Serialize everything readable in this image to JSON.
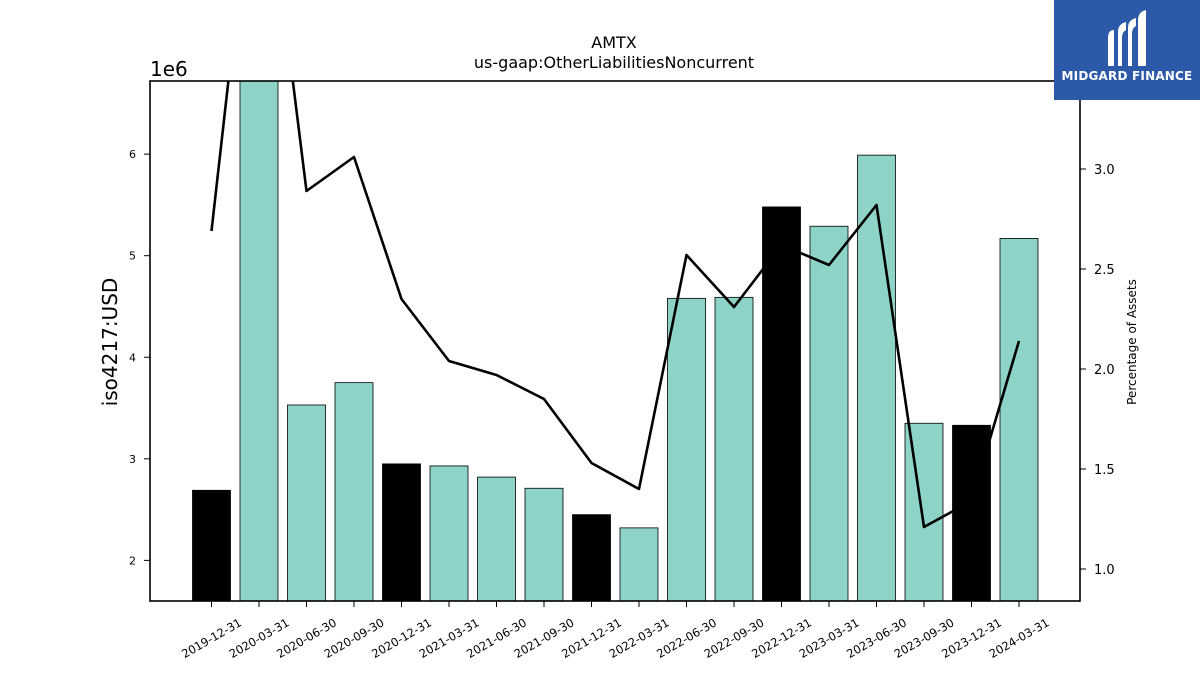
{
  "chart_data": {
    "type": "bar",
    "title": "AMTX",
    "subtitle": "us-gaap:OtherLiabilitiesNoncurrent",
    "ylabel": "iso4217:USD",
    "y_offset_label": "1e6",
    "y2label": "Percentage of Assets",
    "categories": [
      "2019-12-31",
      "2020-03-31",
      "2020-06-30",
      "2020-09-30",
      "2020-12-31",
      "2021-03-31",
      "2021-06-30",
      "2021-09-30",
      "2021-12-31",
      "2022-03-31",
      "2022-06-30",
      "2022-09-30",
      "2022-12-31",
      "2023-03-31",
      "2023-06-30",
      "2023-09-30",
      "2023-12-31",
      "2024-03-31"
    ],
    "series": [
      {
        "type": "bar",
        "values": [
          2.69,
          6.72,
          3.53,
          3.75,
          2.95,
          2.93,
          2.82,
          2.71,
          2.45,
          2.32,
          4.58,
          4.59,
          5.48,
          5.29,
          5.99,
          3.35,
          3.33,
          5.17
        ],
        "colors": [
          "#000000",
          "#8dd3c7",
          "#8dd3c7",
          "#8dd3c7",
          "#000000",
          "#8dd3c7",
          "#8dd3c7",
          "#8dd3c7",
          "#000000",
          "#8dd3c7",
          "#8dd3c7",
          "#8dd3c7",
          "#000000",
          "#8dd3c7",
          "#8dd3c7",
          "#8dd3c7",
          "#000000",
          "#8dd3c7"
        ]
      },
      {
        "type": "line",
        "axis": "right",
        "values": [
          2.69,
          4.8,
          2.89,
          3.06,
          2.35,
          2.04,
          1.97,
          1.85,
          1.53,
          1.4,
          2.57,
          2.31,
          2.62,
          2.52,
          2.82,
          1.21,
          1.34,
          2.14
        ],
        "color": "#000000"
      }
    ],
    "ylim": [
      1.6,
      6.72
    ],
    "yticks": [
      2,
      3,
      4,
      5,
      6
    ],
    "y2lim": [
      0.84,
      3.44
    ],
    "y2ticks": [
      1.0,
      1.5,
      2.0,
      2.5,
      3.0
    ],
    "y2tick_labels": [
      "1.0",
      "1.5",
      "2.0",
      "2.5",
      "3.0"
    ],
    "bar_edge_color": "#000000",
    "grid": false,
    "legend": "none"
  },
  "logo": {
    "text": "MIDGARD FINANCE",
    "background": "#2c5aa8"
  }
}
